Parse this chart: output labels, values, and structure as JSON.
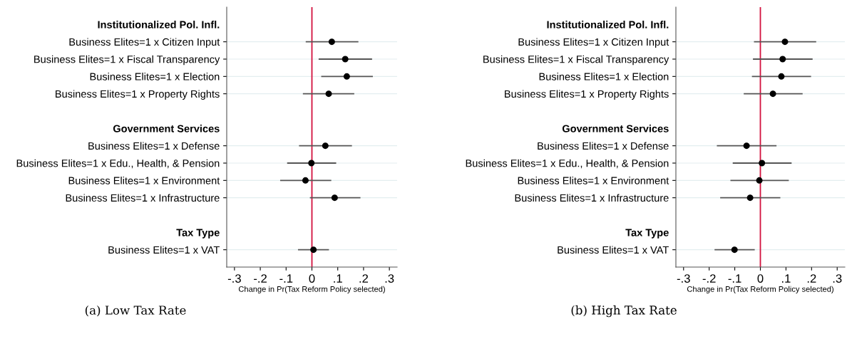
{
  "chart_data": [
    {
      "type": "scatter",
      "orientation": "horizontal",
      "xlabel": "Change in Pr(Tax Reform Policy selected)",
      "categories": [
        "Institutionalized Pol. Infl.",
        "Business Elites=1 x Citizen Input",
        "Business Elites=1 x Fiscal Transparency",
        "Business Elites=1 x Election",
        "Business Elites=1 x Property Rights",
        null,
        "Government Services",
        "Business Elites=1 x Defense",
        "Business Elites=1 x Edu., Health, & Pension",
        "Business Elites=1 x Environment",
        "Business Elites=1 x Infrastructure",
        null,
        "Tax Type",
        "Business Elites=1 x VAT"
      ],
      "series": [
        {
          "color": "#000000",
          "values": [
            null,
            0.077,
            0.129,
            0.135,
            0.065,
            null,
            null,
            0.052,
            -0.002,
            -0.025,
            0.088,
            null,
            null,
            0.006
          ],
          "errors": [
            null,
            [
              -0.024,
              0.18
            ],
            [
              0.026,
              0.233
            ],
            [
              0.036,
              0.236
            ],
            [
              -0.035,
              0.164
            ],
            null,
            null,
            [
              -0.05,
              0.155
            ],
            [
              -0.096,
              0.094
            ],
            [
              -0.123,
              0.075
            ],
            [
              -0.008,
              0.188
            ],
            null,
            null,
            [
              -0.054,
              0.066
            ]
          ]
        }
      ],
      "xlim": [
        -0.33,
        0.33
      ],
      "xticks": [
        {
          "value": -0.3,
          "label": "-.3"
        },
        {
          "value": -0.2,
          "label": "-.2"
        },
        {
          "value": -0.1,
          "label": "-.1"
        },
        0,
        {
          "value": 0.1,
          "label": ".1"
        },
        {
          "value": 0.2,
          "label": ".2"
        },
        {
          "value": 0.3,
          "label": ".3"
        }
      ],
      "ref_lines": [
        {
          "axis": "x",
          "value": 0,
          "color": "#d3123f"
        }
      ],
      "grid": "y",
      "marker": "circle",
      "annotations": [
        "(a) Low Tax Rate"
      ]
    },
    {
      "type": "scatter",
      "orientation": "horizontal",
      "xlabel": "Change in Pr(Tax Reform Policy selected)",
      "categories": [
        "Institutionalized Pol. Infl.",
        "Business Elites=1 x Citizen Input",
        "Business Elites=1 x Fiscal Transparency",
        "Business Elites=1 x Election",
        "Business Elites=1 x Property Rights",
        null,
        "Government Services",
        "Business Elites=1 x Defense",
        "Business Elites=1 x Edu., Health, & Pension",
        "Business Elites=1 x Environment",
        "Business Elites=1 x Infrastructure",
        null,
        "Tax Type",
        "Business Elites=1 x VAT"
      ],
      "series": [
        {
          "color": "#000000",
          "values": [
            null,
            0.096,
            0.087,
            0.082,
            0.049,
            null,
            null,
            -0.054,
            0.006,
            -0.004,
            -0.04,
            null,
            null,
            -0.101
          ],
          "errors": [
            null,
            [
              -0.025,
              0.218
            ],
            [
              -0.029,
              0.204
            ],
            [
              -0.033,
              0.198
            ],
            [
              -0.065,
              0.165
            ],
            null,
            null,
            [
              -0.17,
              0.063
            ],
            [
              -0.108,
              0.122
            ],
            [
              -0.117,
              0.111
            ],
            [
              -0.157,
              0.078
            ],
            null,
            null,
            [
              -0.179,
              -0.022
            ]
          ]
        }
      ],
      "xlim": [
        -0.33,
        0.33
      ],
      "xticks": [
        {
          "value": -0.3,
          "label": "-.3"
        },
        {
          "value": -0.2,
          "label": "-.2"
        },
        {
          "value": -0.1,
          "label": "-.1"
        },
        0,
        {
          "value": 0.1,
          "label": ".1"
        },
        {
          "value": 0.2,
          "label": ".2"
        },
        {
          "value": 0.3,
          "label": ".3"
        }
      ],
      "ref_lines": [
        {
          "axis": "x",
          "value": 0,
          "color": "#d3123f"
        }
      ],
      "grid": "y",
      "marker": "circle",
      "annotations": [
        "(b) High Tax Rate"
      ]
    }
  ]
}
